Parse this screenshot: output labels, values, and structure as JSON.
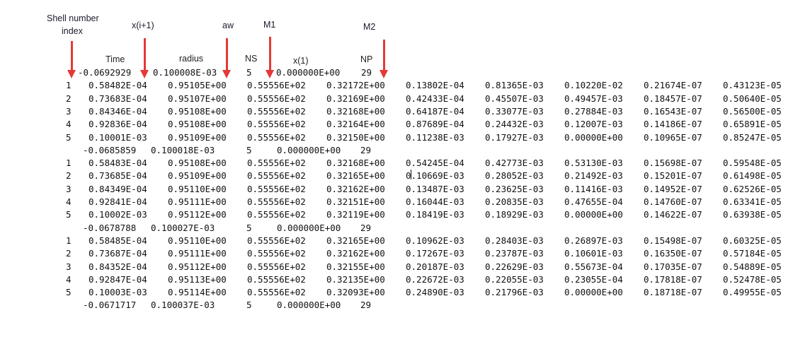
{
  "annotations": {
    "shell_index_line1": "Shell number",
    "shell_index_line2": "index",
    "x_next": "x(i+1)",
    "aw": "aw",
    "m1": "M1",
    "m2": "M2"
  },
  "headers": {
    "time": "Time",
    "radius": "radius",
    "ns": "NS",
    "x1": "x(1)",
    "np": "NP"
  },
  "blocks": [
    {
      "summary": [
        "-0.0692929",
        "0.100008E-03",
        "5",
        "0.000000E+00",
        "29"
      ],
      "rows": [
        [
          "1",
          "0.58482E-04",
          "0.95105E+00",
          "0.55556E+02",
          "0.32172E+00",
          "0.13802E-04",
          "0.81365E-03",
          "0.10220E-02",
          "0.21674E-07",
          "0.43123E-05"
        ],
        [
          "2",
          "0.73683E-04",
          "0.95107E+00",
          "0.55556E+02",
          "0.32169E+00",
          "0.42433E-04",
          "0.45507E-03",
          "0.49457E-03",
          "0.18457E-07",
          "0.50640E-05"
        ],
        [
          "3",
          "0.84346E-04",
          "0.95108E+00",
          "0.55556E+02",
          "0.32168E+00",
          "0.64187E-04",
          "0.33077E-03",
          "0.27884E-03",
          "0.16543E-07",
          "0.56500E-05"
        ],
        [
          "4",
          "0.92836E-04",
          "0.95108E+00",
          "0.55556E+02",
          "0.32164E+00",
          "0.87689E-04",
          "0.24432E-03",
          "0.12007E-03",
          "0.14186E-07",
          "0.65891E-05"
        ],
        [
          "5",
          "0.10001E-03",
          "0.95109E+00",
          "0.55556E+02",
          "0.32150E+00",
          "0.11238E-03",
          "0.17927E-03",
          "0.00000E+00",
          "0.10965E-07",
          "0.85247E-05"
        ]
      ]
    },
    {
      "summary": [
        "-0.0685859",
        "0.100018E-03",
        "5",
        "0.000000E+00",
        "29"
      ],
      "rows": [
        [
          "1",
          "0.58483E-04",
          "0.95108E+00",
          "0.55556E+02",
          "0.32168E+00",
          "0.54245E-04",
          "0.42773E-03",
          "0.53130E-03",
          "0.15698E-07",
          "0.59548E-05"
        ],
        [
          "2",
          "0.73685E-04",
          "0.95109E+00",
          "0.55556E+02",
          "0.32165E+00",
          "0.10669E-03",
          "0.28052E-03",
          "0.21492E-03",
          "0.15201E-07",
          "0.61498E-05"
        ],
        [
          "3",
          "0.84349E-04",
          "0.95110E+00",
          "0.55556E+02",
          "0.32162E+00",
          "0.13487E-03",
          "0.23625E-03",
          "0.11416E-03",
          "0.14952E-07",
          "0.62526E-05"
        ],
        [
          "4",
          "0.92841E-04",
          "0.95111E+00",
          "0.55556E+02",
          "0.32151E+00",
          "0.16044E-03",
          "0.20835E-03",
          "0.47655E-04",
          "0.14760E-07",
          "0.63341E-05"
        ],
        [
          "5",
          "0.10002E-03",
          "0.95112E+00",
          "0.55556E+02",
          "0.32119E+00",
          "0.18419E-03",
          "0.18929E-03",
          "0.00000E+00",
          "0.14622E-07",
          "0.63938E-05"
        ]
      ]
    },
    {
      "summary": [
        "-0.0678788",
        "0.100027E-03",
        "5",
        "0.000000E+00",
        "29"
      ],
      "rows": [
        [
          "1",
          "0.58485E-04",
          "0.95110E+00",
          "0.55556E+02",
          "0.32165E+00",
          "0.10962E-03",
          "0.28403E-03",
          "0.26897E-03",
          "0.15498E-07",
          "0.60325E-05"
        ],
        [
          "2",
          "0.73687E-04",
          "0.95111E+00",
          "0.55556E+02",
          "0.32162E+00",
          "0.17267E-03",
          "0.23787E-03",
          "0.10601E-03",
          "0.16350E-07",
          "0.57184E-05"
        ],
        [
          "3",
          "0.84352E-04",
          "0.95112E+00",
          "0.55556E+02",
          "0.32155E+00",
          "0.20187E-03",
          "0.22629E-03",
          "0.55673E-04",
          "0.17035E-07",
          "0.54889E-05"
        ],
        [
          "4",
          "0.92847E-04",
          "0.95113E+00",
          "0.55556E+02",
          "0.32135E+00",
          "0.22672E-03",
          "0.22055E-03",
          "0.23055E-04",
          "0.17818E-07",
          "0.52478E-05"
        ],
        [
          "5",
          "0.10003E-03",
          "0.95114E+00",
          "0.55556E+02",
          "0.32093E+00",
          "0.24890E-03",
          "0.21796E-03",
          "0.00000E+00",
          "0.18718E-07",
          "0.49955E-05"
        ]
      ]
    }
  ],
  "final_summary": [
    "-0.0671717",
    "0.100037E-03",
    "5",
    "0.000000E+00",
    "29"
  ]
}
